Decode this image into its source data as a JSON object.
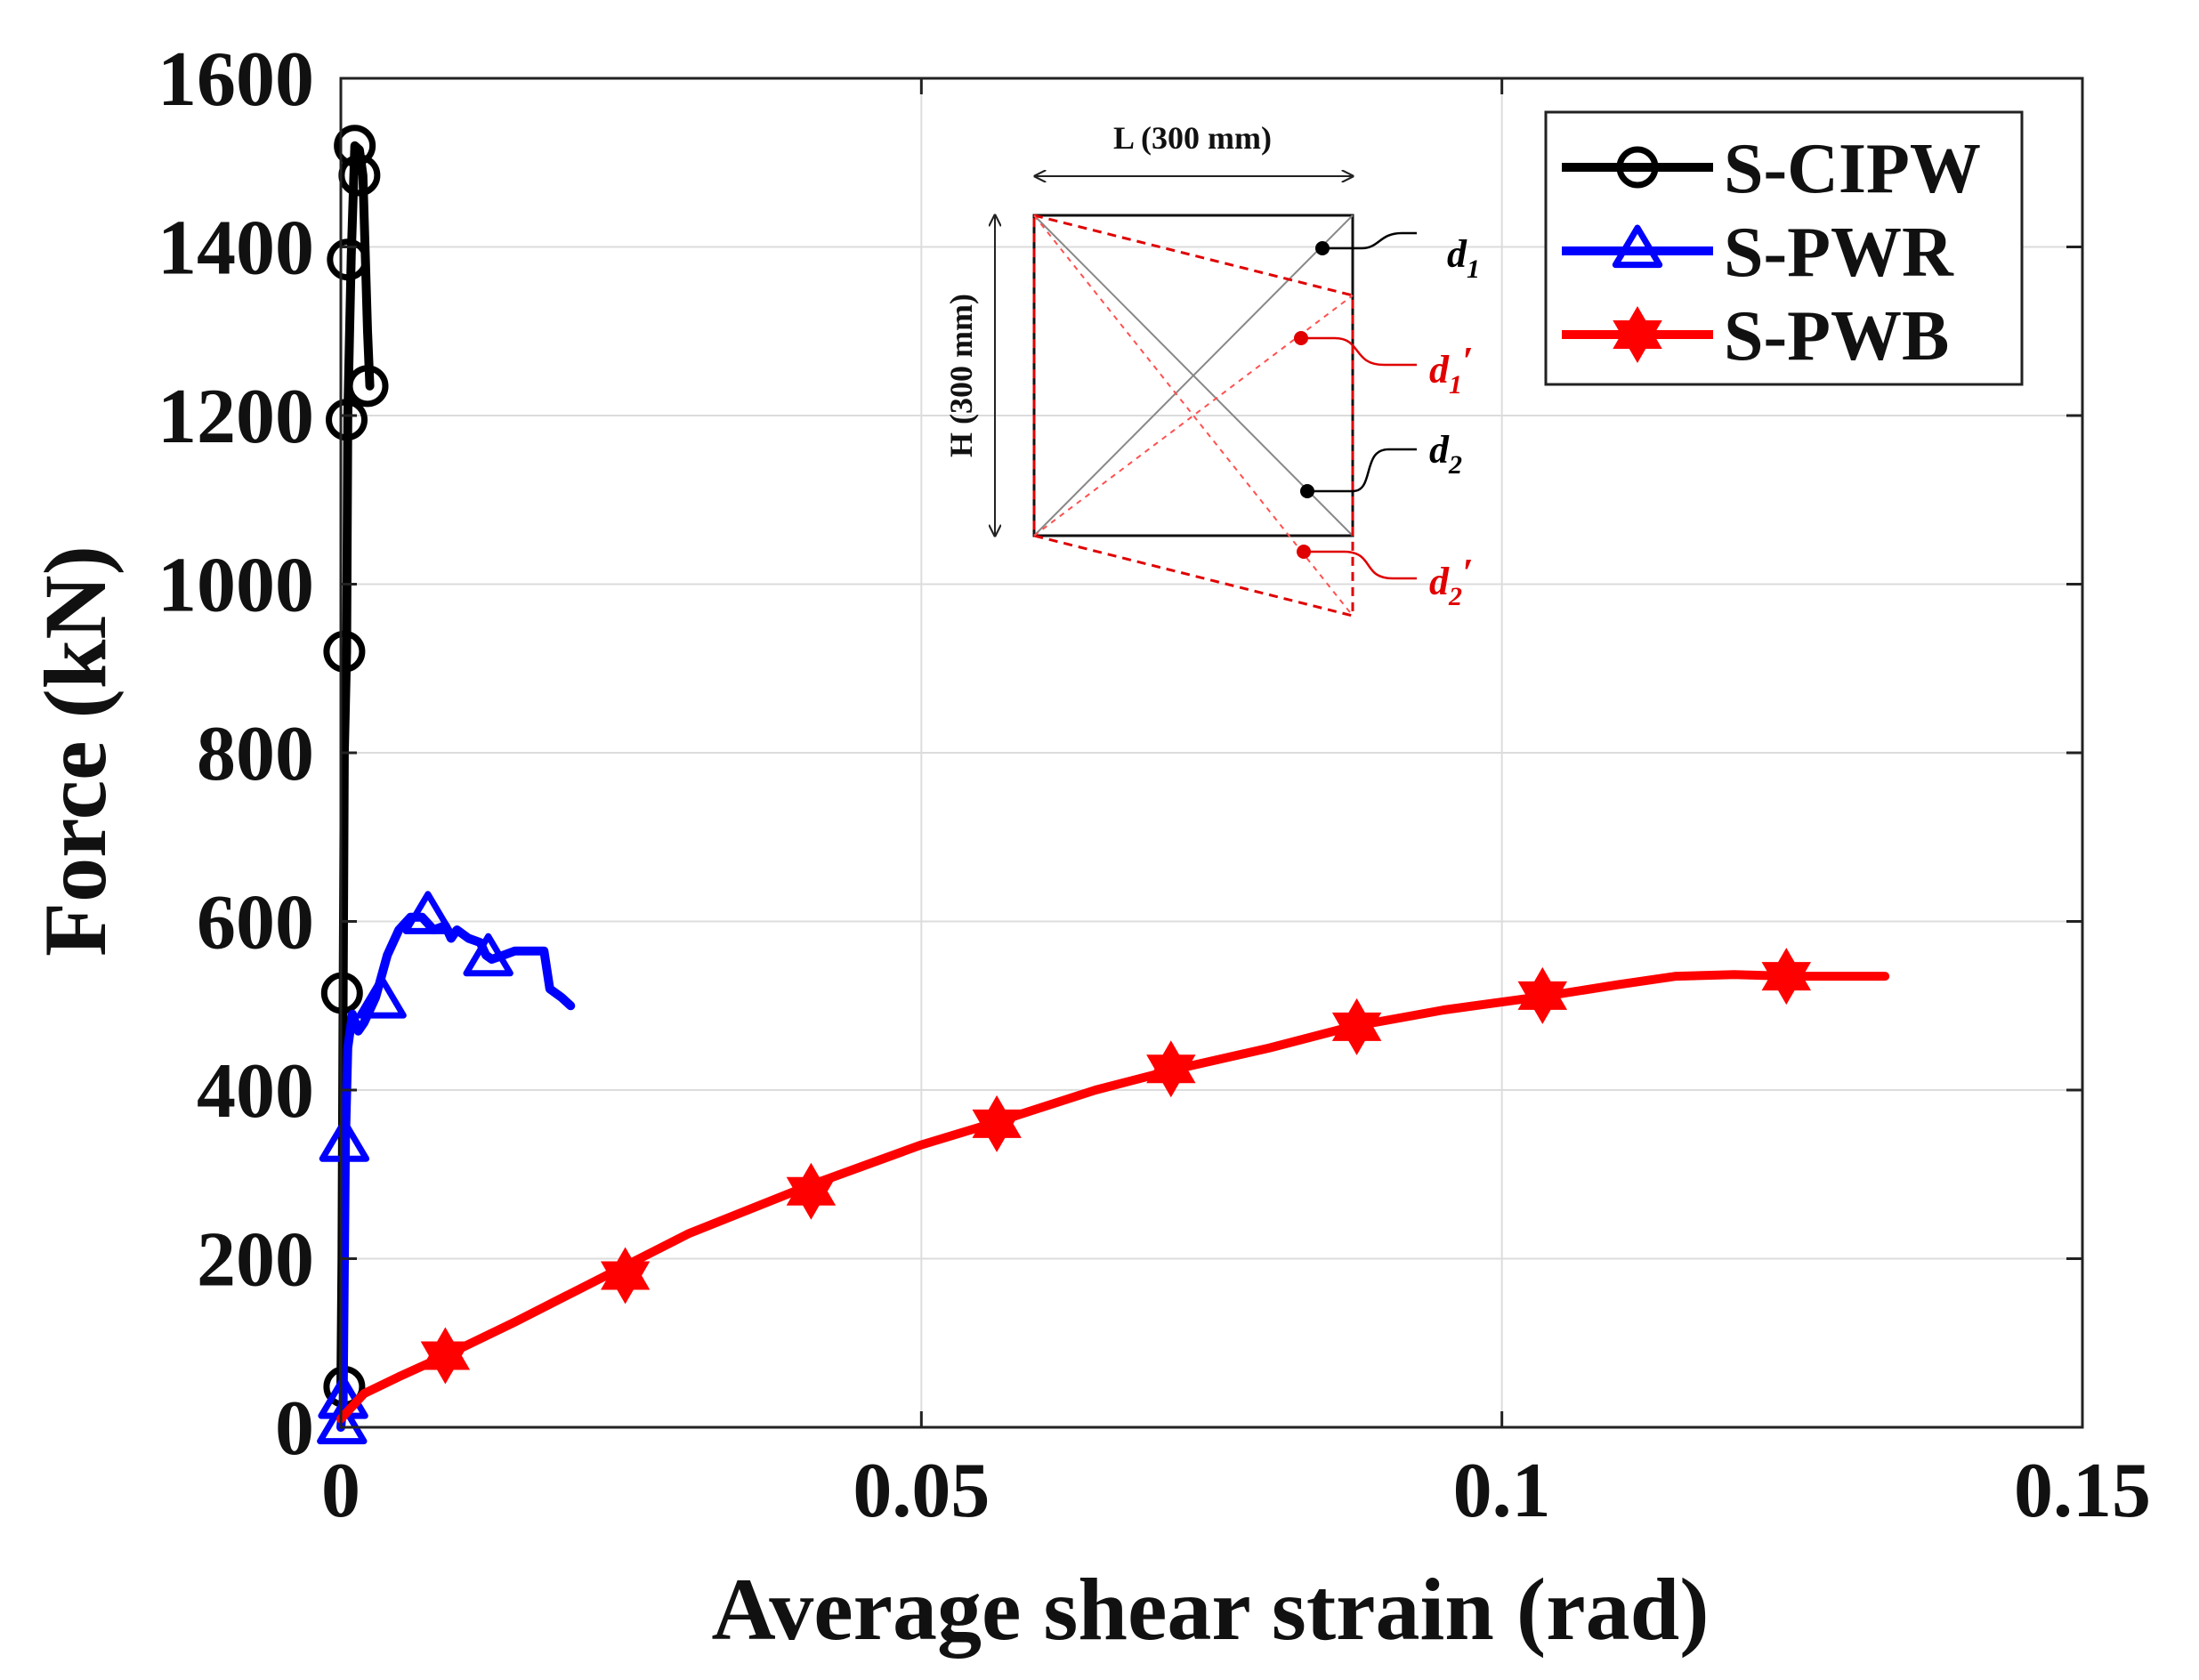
{
  "chart_data": {
    "type": "line",
    "title": "",
    "xlabel": "Average shear strain (rad)",
    "ylabel": "Force (kN)",
    "xlim": [
      0,
      0.15
    ],
    "ylim": [
      0,
      1600
    ],
    "xticks": [
      0,
      0.05,
      0.1,
      0.15
    ],
    "xtick_labels": [
      "0",
      "0.05",
      "0.1",
      "0.15"
    ],
    "yticks": [
      0,
      200,
      400,
      600,
      800,
      1000,
      1200,
      1400,
      1600
    ],
    "ytick_labels": [
      "0",
      "200",
      "400",
      "600",
      "800",
      "1000",
      "1200",
      "1400",
      "1600"
    ],
    "grid": true,
    "legend_position": "top-right",
    "series": [
      {
        "name": "S-CIPW",
        "color": "#000000",
        "marker": "circle",
        "x": [
          0,
          0.0001,
          0.0002,
          0.0003,
          0.0005,
          0.0006,
          0.0009,
          0.0012,
          0.0016,
          0.0019,
          0.0023,
          0.0025
        ],
        "y": [
          45,
          200,
          515,
          800,
          920,
          1200,
          1390,
          1520,
          1515,
          1485,
          1300,
          1235
        ],
        "markers_x": [
          0.0003,
          0.0001,
          0.0003,
          0.0005,
          0.0006,
          0.0012,
          0.0016,
          0.0023
        ],
        "markers_y": [
          48,
          515,
          920,
          1195,
          1385,
          1520,
          1485,
          1235
        ]
      },
      {
        "name": "S-PWR",
        "color": "#0000ff",
        "marker": "triangle",
        "x": [
          0,
          0.0002,
          0.0004,
          0.0006,
          0.001,
          0.0015,
          0.002,
          0.003,
          0.004,
          0.005,
          0.006,
          0.007,
          0.008,
          0.009,
          0.0095,
          0.01,
          0.011,
          0.012,
          0.0125,
          0.013,
          0.014,
          0.015,
          0.016,
          0.017,
          0.0175,
          0.018,
          0.019,
          0.0198
        ],
        "y": [
          0,
          30,
          340,
          450,
          490,
          470,
          480,
          510,
          560,
          590,
          605,
          605,
          590,
          595,
          580,
          590,
          580,
          575,
          560,
          555,
          560,
          565,
          565,
          565,
          565,
          520,
          510,
          500
        ],
        "markers_x": [
          0.0001,
          0.0002,
          0.0003,
          0.0035,
          0.0075,
          0.0127
        ],
        "markers_y": [
          0,
          30,
          335,
          505,
          605,
          555
        ]
      },
      {
        "name": "S-PWB",
        "color": "#ff0000",
        "marker": "hexagram",
        "x": [
          0,
          0.002,
          0.005,
          0.009,
          0.015,
          0.02,
          0.025,
          0.03,
          0.04,
          0.05,
          0.056,
          0.065,
          0.072,
          0.08,
          0.087,
          0.095,
          0.104,
          0.11,
          0.115,
          0.12,
          0.125,
          0.13,
          0.133
        ],
        "y": [
          10,
          40,
          60,
          85,
          125,
          160,
          195,
          230,
          285,
          335,
          360,
          400,
          425,
          450,
          475,
          495,
          512,
          525,
          535,
          537,
          535,
          535,
          535
        ],
        "markers_x": [
          0.009,
          0.0245,
          0.0405,
          0.0565,
          0.0715,
          0.0875,
          0.1035,
          0.1245
        ],
        "markers_y": [
          85,
          180,
          280,
          360,
          425,
          475,
          512,
          535
        ]
      }
    ],
    "inset": {
      "width_label": "L (300 mm)",
      "height_label": "H (300 mm)",
      "labels": [
        {
          "base": "d",
          "sub": "1",
          "prime": "",
          "color": "#000000"
        },
        {
          "base": "d",
          "sub": "1",
          "prime": "′",
          "color": "#e00000"
        },
        {
          "base": "d",
          "sub": "2",
          "prime": "",
          "color": "#000000"
        },
        {
          "base": "d",
          "sub": "2",
          "prime": "′",
          "color": "#e00000"
        }
      ]
    }
  }
}
